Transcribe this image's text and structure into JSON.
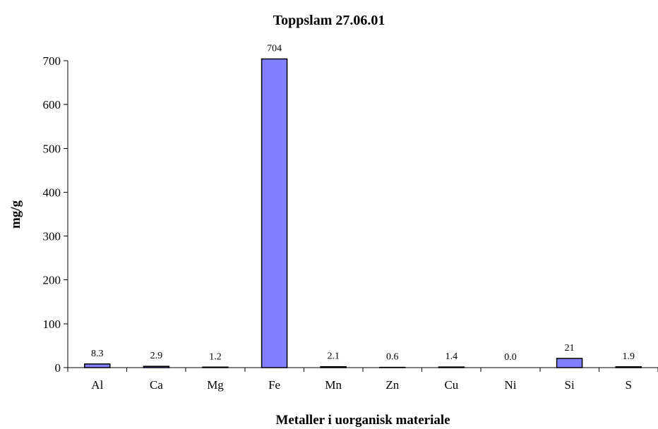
{
  "chart_data": {
    "type": "bar",
    "title": "Toppslam 27.06.01",
    "xlabel": "Metaller i uorganisk materiale",
    "ylabel": "mg/g",
    "categories": [
      "Al",
      "Ca",
      "Mg",
      "Fe",
      "Mn",
      "Zn",
      "Cu",
      "Ni",
      "Si",
      "S"
    ],
    "values": [
      8.3,
      2.9,
      1.2,
      704,
      2.1,
      0.6,
      1.4,
      0.0,
      21,
      1.9
    ],
    "data_labels": [
      "8.3",
      "2.9",
      "1.2",
      "704",
      "2.1",
      "0.6",
      "1.4",
      "0.0",
      "21",
      "1.9"
    ],
    "ylim": [
      0,
      700
    ],
    "yticks": [
      0,
      100,
      200,
      300,
      400,
      500,
      600,
      700
    ],
    "grid": false,
    "legend": "none",
    "bar_color": "#8080ff"
  }
}
